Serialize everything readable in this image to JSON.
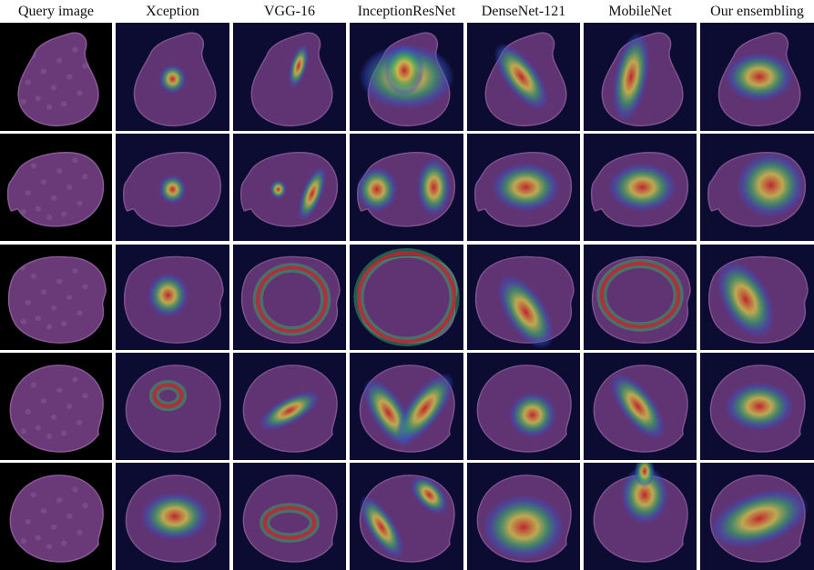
{
  "columns": [
    "Query image",
    "Xception",
    "VGG-16",
    "InceptionResNet",
    "DenseNet-121",
    "MobileNet",
    "Our ensembling"
  ],
  "colors": {
    "background": "#ffffff",
    "query_bg": "#000000",
    "map_bg": "#0b0b2e",
    "cell_fill": "#6a3a78",
    "cell_edge": "#8a5a96",
    "heat_low": "#3b5bd6",
    "heat_mid": "#39b86a",
    "heat_mid2": "#e6d64a",
    "heat_high": "#d8262a"
  },
  "rows": [
    {
      "cell_shape": "pear",
      "heatmaps": {
        "Xception": "small-spot-center",
        "VGG-16": "small-streak-upper-right",
        "InceptionResNet": "broad-triangle-center",
        "DenseNet-121": "diagonal-band-center",
        "MobileNet": "vertical-band-center",
        "Our ensembling": "oval-center"
      }
    },
    {
      "cell_shape": "oval-with-bleb",
      "heatmaps": {
        "Xception": "small-spot-center",
        "VGG-16": "right-edge-arc",
        "InceptionResNet": "left-and-right-blobs",
        "DenseNet-121": "oval-center",
        "MobileNet": "oval-center",
        "Our ensembling": "oval-right-center"
      }
    },
    {
      "cell_shape": "round-irregular",
      "heatmaps": {
        "Xception": "spot-center",
        "VGG-16": "ring-arc-lower",
        "InceptionResNet": "large-ring-whole-cell",
        "DenseNet-121": "diagonal-band-lower",
        "MobileNet": "ring-with-edge-bands",
        "Our ensembling": "diagonal-oval-left"
      }
    },
    {
      "cell_shape": "round",
      "heatmaps": {
        "Xception": "small-ring-center",
        "VGG-16": "curved-streak-center",
        "InceptionResNet": "v-shape-band",
        "DenseNet-121": "spot-lower-right",
        "MobileNet": "diagonal-band-center",
        "Our ensembling": "oval-center"
      }
    },
    {
      "cell_shape": "round",
      "heatmaps": {
        "Xception": "oval-center",
        "VGG-16": "arch-center",
        "InceptionResNet": "two-diagonal-streaks",
        "DenseNet-121": "triangle-lower",
        "MobileNet": "spot-top-with-streak",
        "Our ensembling": "diagonal-oval-center"
      }
    }
  ]
}
